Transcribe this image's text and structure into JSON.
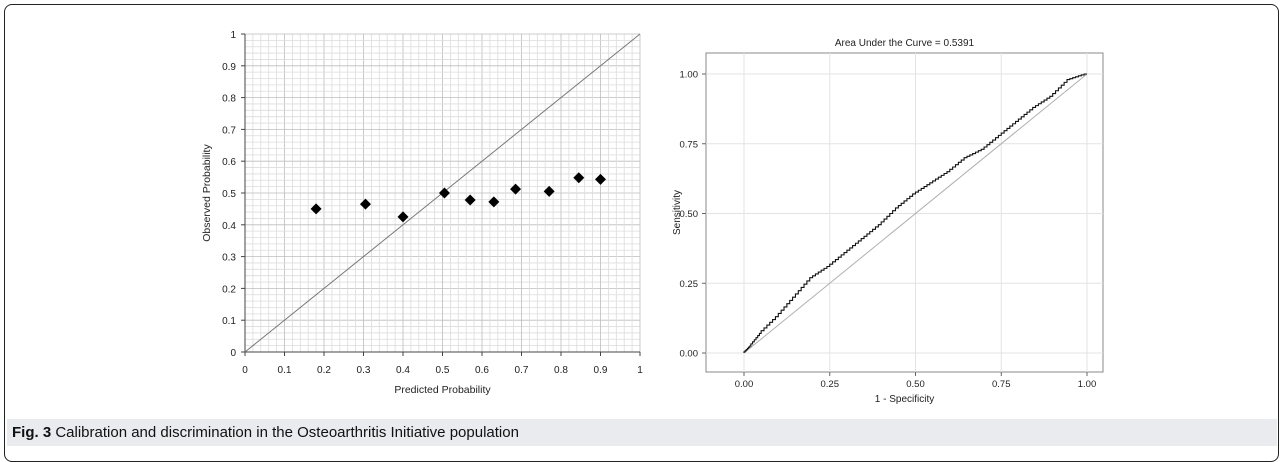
{
  "caption": {
    "label": "Fig. 3",
    "text": "Calibration and discrimination in the Osteoarthritis Initiative population"
  },
  "chart_data": [
    {
      "type": "scatter",
      "title": "",
      "xlabel": "Predicted Probability",
      "ylabel": "Observed Probability",
      "xlim": [
        0,
        1
      ],
      "ylim": [
        0,
        1
      ],
      "xticks": [
        "0",
        "0.1",
        "0.2",
        "0.3",
        "0.4",
        "0.5",
        "0.6",
        "0.7",
        "0.8",
        "0.9",
        "1"
      ],
      "yticks": [
        "0",
        "0.1",
        "0.2",
        "0.3",
        "0.4",
        "0.5",
        "0.6",
        "0.7",
        "0.8",
        "0.9",
        "1"
      ],
      "grid": true,
      "reference_line": "diagonal y = x",
      "marker": "diamond",
      "marker_color": "#000000",
      "points": [
        {
          "x": 0.18,
          "y": 0.45
        },
        {
          "x": 0.305,
          "y": 0.465
        },
        {
          "x": 0.4,
          "y": 0.425
        },
        {
          "x": 0.505,
          "y": 0.5
        },
        {
          "x": 0.57,
          "y": 0.478
        },
        {
          "x": 0.63,
          "y": 0.472
        },
        {
          "x": 0.685,
          "y": 0.512
        },
        {
          "x": 0.77,
          "y": 0.505
        },
        {
          "x": 0.845,
          "y": 0.548
        },
        {
          "x": 0.9,
          "y": 0.543
        }
      ]
    },
    {
      "type": "line",
      "title": "Area Under the Curve = 0.5391",
      "xlabel": "1 - Specificity",
      "ylabel": "Sensitivity",
      "xlim": [
        0,
        1
      ],
      "ylim": [
        0,
        1
      ],
      "xticks": [
        "0.00",
        "0.25",
        "0.50",
        "0.75",
        "1.00"
      ],
      "yticks": [
        "0.00",
        "0.25",
        "0.50",
        "0.75",
        "1.00"
      ],
      "grid": true,
      "reference_line": "diagonal y = x",
      "series": [
        {
          "x": [
            0,
            0.02,
            0.05,
            0.1,
            0.15,
            0.2,
            0.25,
            0.3,
            0.35,
            0.4,
            0.45,
            0.5,
            0.55,
            0.6,
            0.65,
            0.7,
            0.75,
            0.8,
            0.85,
            0.9,
            0.95,
            1.0
          ],
          "y": [
            0,
            0.025,
            0.07,
            0.13,
            0.2,
            0.27,
            0.31,
            0.36,
            0.41,
            0.46,
            0.52,
            0.57,
            0.61,
            0.65,
            0.7,
            0.73,
            0.78,
            0.83,
            0.88,
            0.92,
            0.98,
            1.0
          ]
        }
      ]
    }
  ]
}
